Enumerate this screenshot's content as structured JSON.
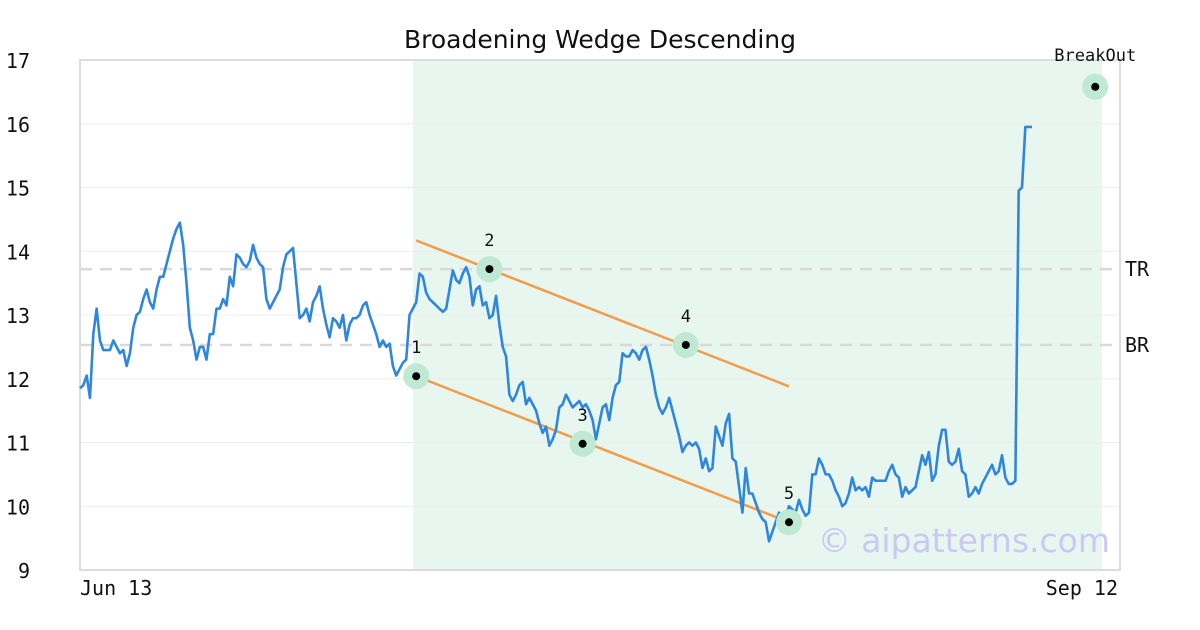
{
  "chart_data": {
    "type": "line",
    "title": "Broadening Wedge Descending",
    "x_tick_labels": [
      "Jun 13",
      "Sep 12"
    ],
    "ylim": [
      9,
      17
    ],
    "y_ticks": [
      9,
      10,
      11,
      12,
      13,
      14,
      15,
      16,
      17
    ],
    "grid": true,
    "series": [
      {
        "color": "#2e86de",
        "values": [
          11.85,
          11.9,
          12.05,
          11.7,
          12.7,
          13.1,
          12.6,
          12.45,
          12.45,
          12.45,
          12.6,
          12.5,
          12.4,
          12.45,
          12.2,
          12.4,
          12.8,
          13.0,
          13.05,
          13.25,
          13.4,
          13.2,
          13.1,
          13.4,
          13.6,
          13.6,
          13.8,
          14.0,
          14.2,
          14.35,
          14.45,
          14.1,
          13.5,
          12.8,
          12.6,
          12.3,
          12.5,
          12.5,
          12.3,
          12.7,
          12.7,
          13.1,
          13.1,
          13.25,
          13.15,
          13.6,
          13.45,
          13.95,
          13.9,
          13.8,
          13.75,
          13.85,
          14.1,
          13.9,
          13.8,
          13.75,
          13.25,
          13.1,
          13.2,
          13.3,
          13.4,
          13.75,
          13.95,
          14.0,
          14.05,
          13.5,
          12.95,
          13.0,
          13.1,
          12.9,
          13.2,
          13.3,
          13.45,
          13.1,
          12.85,
          12.65,
          12.95,
          12.9,
          12.8,
          13.0,
          12.6,
          12.85,
          12.95,
          12.95,
          13.0,
          13.15,
          13.2,
          13.0,
          12.85,
          12.7,
          12.5,
          12.6,
          12.5,
          12.55,
          12.2,
          12.05,
          12.15,
          12.25,
          12.3,
          13.0,
          13.1,
          13.2,
          13.65,
          13.6,
          13.35,
          13.25,
          13.2,
          13.15,
          13.1,
          13.05,
          13.1,
          13.4,
          13.7,
          13.55,
          13.5,
          13.65,
          13.75,
          13.6,
          13.15,
          13.4,
          13.45,
          13.15,
          13.2,
          12.95,
          13.0,
          13.3,
          12.85,
          12.5,
          12.35,
          11.75,
          11.65,
          11.75,
          11.9,
          11.95,
          11.6,
          11.7,
          11.6,
          11.5,
          11.3,
          11.15,
          11.25,
          10.95,
          11.05,
          11.2,
          11.55,
          11.6,
          11.75,
          11.65,
          11.55,
          11.6,
          11.65,
          11.55,
          11.6,
          11.5,
          11.35,
          11.05,
          11.3,
          11.55,
          11.6,
          11.35,
          11.7,
          11.9,
          11.95,
          12.4,
          12.35,
          12.35,
          12.45,
          12.4,
          12.3,
          12.45,
          12.5,
          12.3,
          12.05,
          11.75,
          11.55,
          11.45,
          11.55,
          11.7,
          11.5,
          11.3,
          11.1,
          10.85,
          10.95,
          11.0,
          10.95,
          11.0,
          10.9,
          10.6,
          10.75,
          10.55,
          10.6,
          11.25,
          11.1,
          10.95,
          11.3,
          11.45,
          10.75,
          10.7,
          10.3,
          9.9,
          10.6,
          10.2,
          10.2,
          10.05,
          9.9,
          9.8,
          9.75,
          9.45,
          9.6,
          9.75,
          9.9,
          9.85,
          9.85,
          10.0,
          9.95,
          9.9,
          10.1,
          9.95,
          9.85,
          9.9,
          10.5,
          10.5,
          10.75,
          10.65,
          10.5,
          10.5,
          10.4,
          10.25,
          10.15,
          10.0,
          10.05,
          10.2,
          10.45,
          10.25,
          10.3,
          10.25,
          10.3,
          10.15,
          10.45,
          10.4,
          10.4,
          10.4,
          10.4,
          10.55,
          10.65,
          10.5,
          10.45,
          10.15,
          10.3,
          10.2,
          10.25,
          10.3,
          10.55,
          10.8,
          10.65,
          10.85,
          10.4,
          10.5,
          10.95,
          11.2,
          11.2,
          10.7,
          10.65,
          10.7,
          10.9,
          10.55,
          10.5,
          10.15,
          10.2,
          10.3,
          10.2,
          10.35,
          10.45,
          10.55,
          10.65,
          10.5,
          10.55,
          10.8,
          10.45,
          10.35,
          10.35,
          10.4,
          14.95,
          15.0,
          15.95,
          15.95,
          15.95
        ]
      }
    ],
    "pattern_region": {
      "from_index": 100,
      "to_index": 307,
      "color": "#e8f6f0"
    },
    "levels": [
      {
        "label": "TR",
        "value": 13.72
      },
      {
        "label": "BR",
        "value": 12.53
      }
    ],
    "pattern_points": [
      {
        "label": "1",
        "index": 101,
        "value": 12.04
      },
      {
        "label": "2",
        "index": 123,
        "value": 13.72
      },
      {
        "label": "3",
        "index": 151,
        "value": 10.98
      },
      {
        "label": "4",
        "index": 182,
        "value": 12.53
      },
      {
        "label": "5",
        "index": 213,
        "value": 9.75
      }
    ],
    "breakout": {
      "label": "BreakOut",
      "index": 305,
      "value": 16.58
    },
    "trend_lines": [
      {
        "name": "upper",
        "from": {
          "index": 101,
          "value": 14.17
        },
        "to": {
          "index": 213,
          "value": 11.88
        },
        "color": "#f39c4a"
      },
      {
        "name": "lower",
        "from": {
          "index": 101,
          "value": 12.04
        },
        "to": {
          "index": 213,
          "value": 9.75
        },
        "color": "#f39c4a"
      }
    ],
    "watermark": "© aipatterns.com",
    "colors": {
      "line": "#2e86de",
      "trend": "#f39c4a",
      "marker_halo": "#bfe9d3",
      "level_line": "#d9d9d9",
      "region": "#e8f6f0"
    }
  }
}
